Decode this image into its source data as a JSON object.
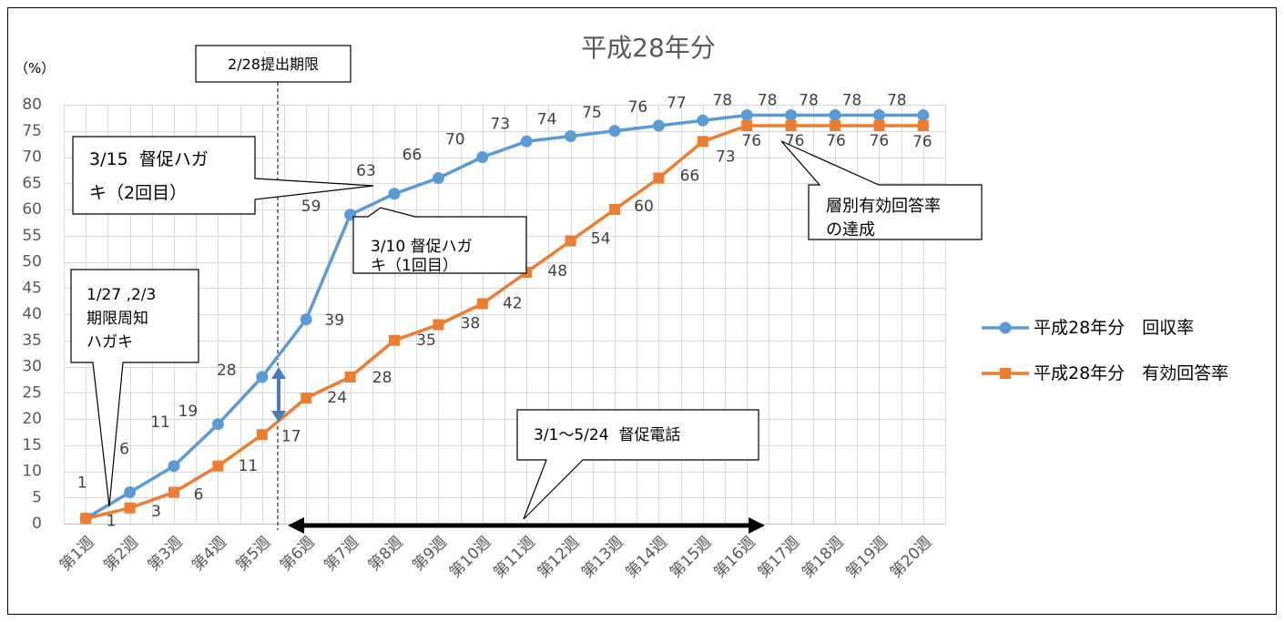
{
  "chart_data": {
    "type": "line",
    "title": "平成28年分",
    "xlabel": "",
    "ylabel": "（%）",
    "categories": [
      "第1週",
      "第2週",
      "第3週",
      "第4週",
      "第5週",
      "第6週",
      "第7週",
      "第8週",
      "第9週",
      "第10週",
      "第11週",
      "第12週",
      "第13週",
      "第14週",
      "第15週",
      "第16週",
      "第17週",
      "第18週",
      "第19週",
      "第20週"
    ],
    "ylim": [
      0,
      80
    ],
    "yticks": [
      0,
      5,
      10,
      15,
      20,
      25,
      30,
      35,
      40,
      45,
      50,
      55,
      60,
      65,
      70,
      75,
      80
    ],
    "grid": true,
    "legend_position": "right",
    "data_labels": true,
    "series": [
      {
        "name": "平成28年分　回収率",
        "color": "#5B9BD5",
        "marker": "circle",
        "values": [
          1,
          6,
          11,
          19,
          28,
          39,
          59,
          63,
          66,
          70,
          73,
          74,
          75,
          76,
          77,
          78,
          78,
          78,
          78,
          78
        ]
      },
      {
        "name": "平成28年分　有効回答率",
        "color": "#ED7D31",
        "marker": "square",
        "values": [
          1,
          3,
          6,
          11,
          17,
          24,
          28,
          35,
          38,
          42,
          48,
          54,
          60,
          66,
          73,
          76,
          76,
          76,
          76,
          76
        ]
      }
    ],
    "annotations": {
      "deadline": [
        "2/28提出期限"
      ],
      "reminder_postcard_2nd": [
        "3/15  督促ハガ",
        "キ（2回目）"
      ],
      "reminder_postcard_1st": [
        "3/10 督促ハガ",
        "キ（1回目）"
      ],
      "deadline_notice_postcard": [
        "1/27 ,2/3",
        "期限周知",
        "ハガキ"
      ],
      "reminder_phone_calls": [
        "3/1～5/24  督促電話"
      ],
      "stratified_rate_achieved": [
        "層別有効回答率",
        "の達成"
      ]
    }
  }
}
